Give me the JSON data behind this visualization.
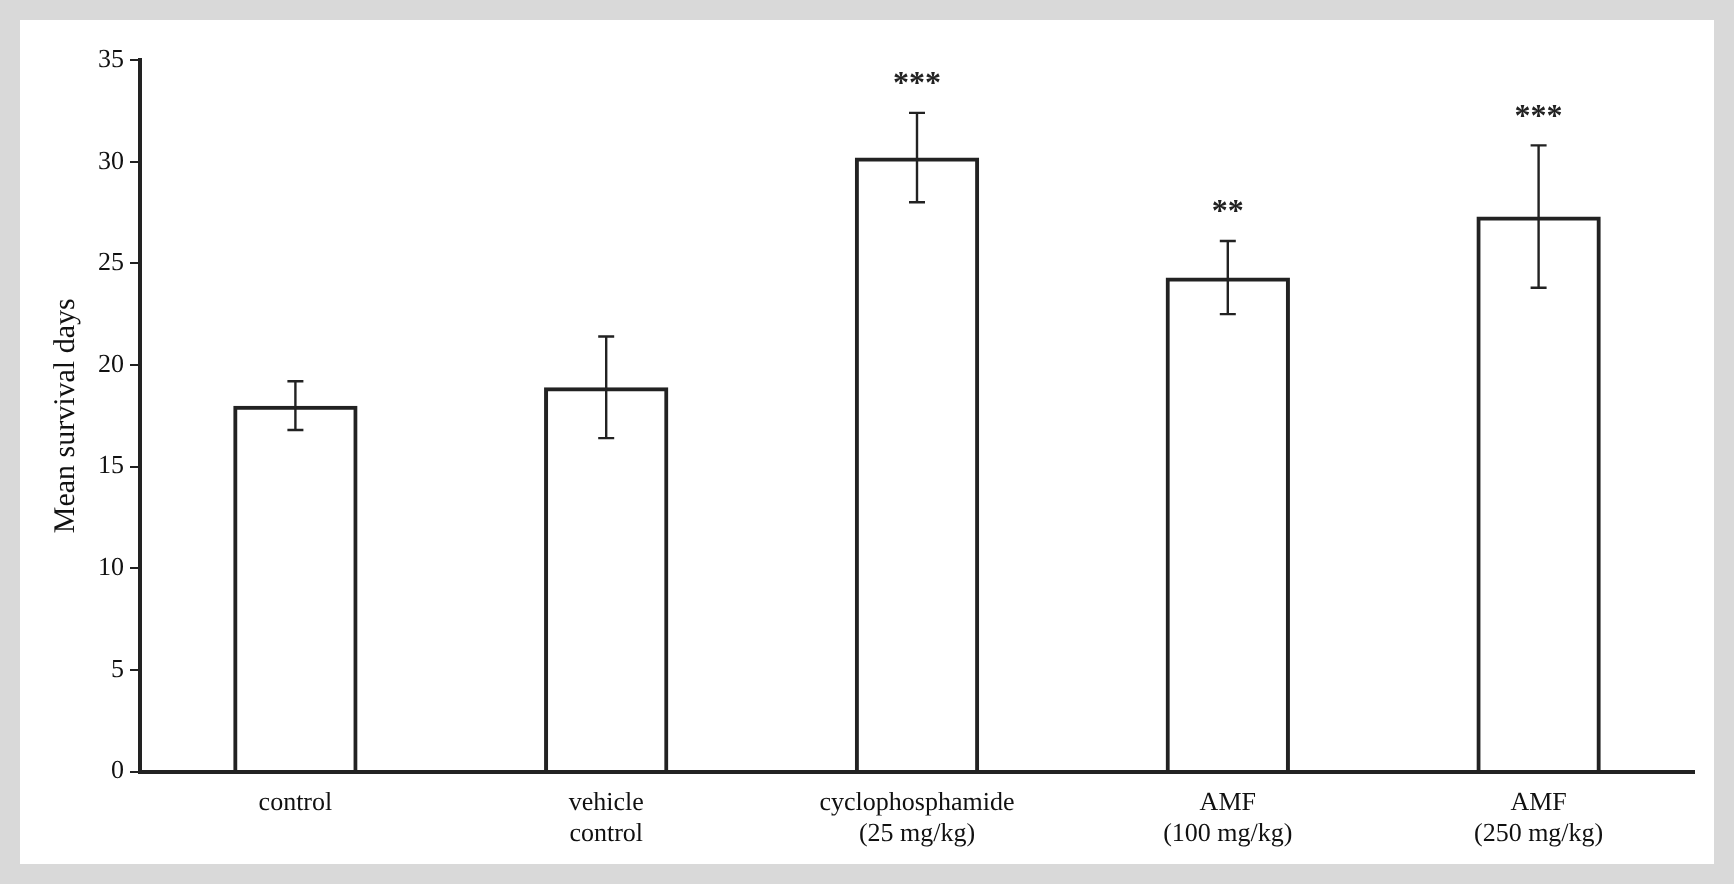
{
  "chart_data": {
    "type": "bar",
    "ylabel": "Mean survival days",
    "categories": [
      "control",
      "vehicle\ncontrol",
      "cyclophosphamide\n(25 mg/kg)",
      "AMF\n(100 mg/kg)",
      "AMF\n(250 mg/kg)"
    ],
    "values": [
      18.0,
      18.9,
      30.2,
      24.3,
      27.3
    ],
    "errors": [
      1.2,
      2.5,
      2.2,
      1.8,
      3.5
    ],
    "color": "#222222",
    "ylim": [
      0,
      35
    ],
    "yticks": [
      0,
      5,
      10,
      15,
      20,
      25,
      30,
      35
    ],
    "grid": false,
    "legend": false,
    "annotations": [
      {
        "text": "***",
        "x": "cyclophosphamide\n(25 mg/kg)",
        "y": 32.4
      },
      {
        "text": "**",
        "x": "AMF\n(100 mg/kg)",
        "y": 26.1
      },
      {
        "text": "***",
        "x": "AMF\n(250 mg/kg)",
        "y": 30.8
      }
    ]
  }
}
